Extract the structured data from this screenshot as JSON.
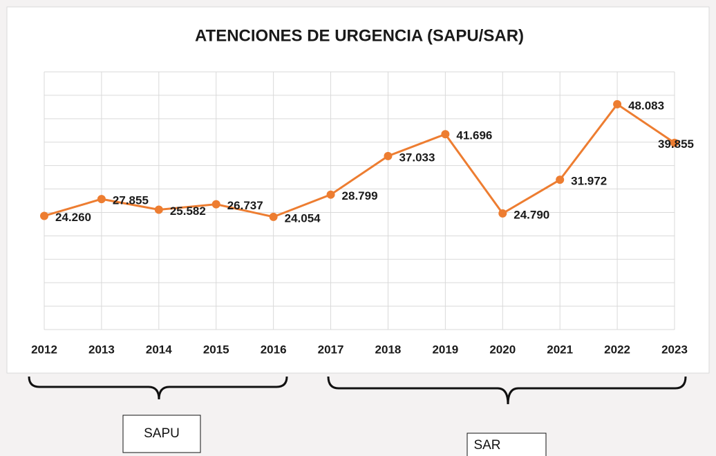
{
  "chart_data": {
    "type": "line",
    "title": "ATENCIONES DE URGENCIA (SAPU/SAR)",
    "categories": [
      "2012",
      "2013",
      "2014",
      "2015",
      "2016",
      "2017",
      "2018",
      "2019",
      "2020",
      "2021",
      "2022",
      "2023"
    ],
    "series": [
      {
        "name": "Atenciones",
        "color": "#ed7d31",
        "values": [
          24260,
          27855,
          25582,
          26737,
          24054,
          28799,
          37033,
          41696,
          24790,
          31972,
          48083,
          39855
        ],
        "value_labels": [
          "24.260",
          "27.855",
          "25.582",
          "26.737",
          "24.054",
          "28.799",
          "37.033",
          "41.696",
          "24.790",
          "31.972",
          "48.083",
          "39.855"
        ]
      }
    ],
    "ylim": [
      0,
      55000
    ],
    "yticks": [
      0,
      5000,
      10000,
      15000,
      20000,
      25000,
      30000,
      35000,
      40000,
      45000,
      50000,
      55000
    ],
    "grid": true,
    "annotations": [
      "SAPU",
      "SAR"
    ]
  }
}
